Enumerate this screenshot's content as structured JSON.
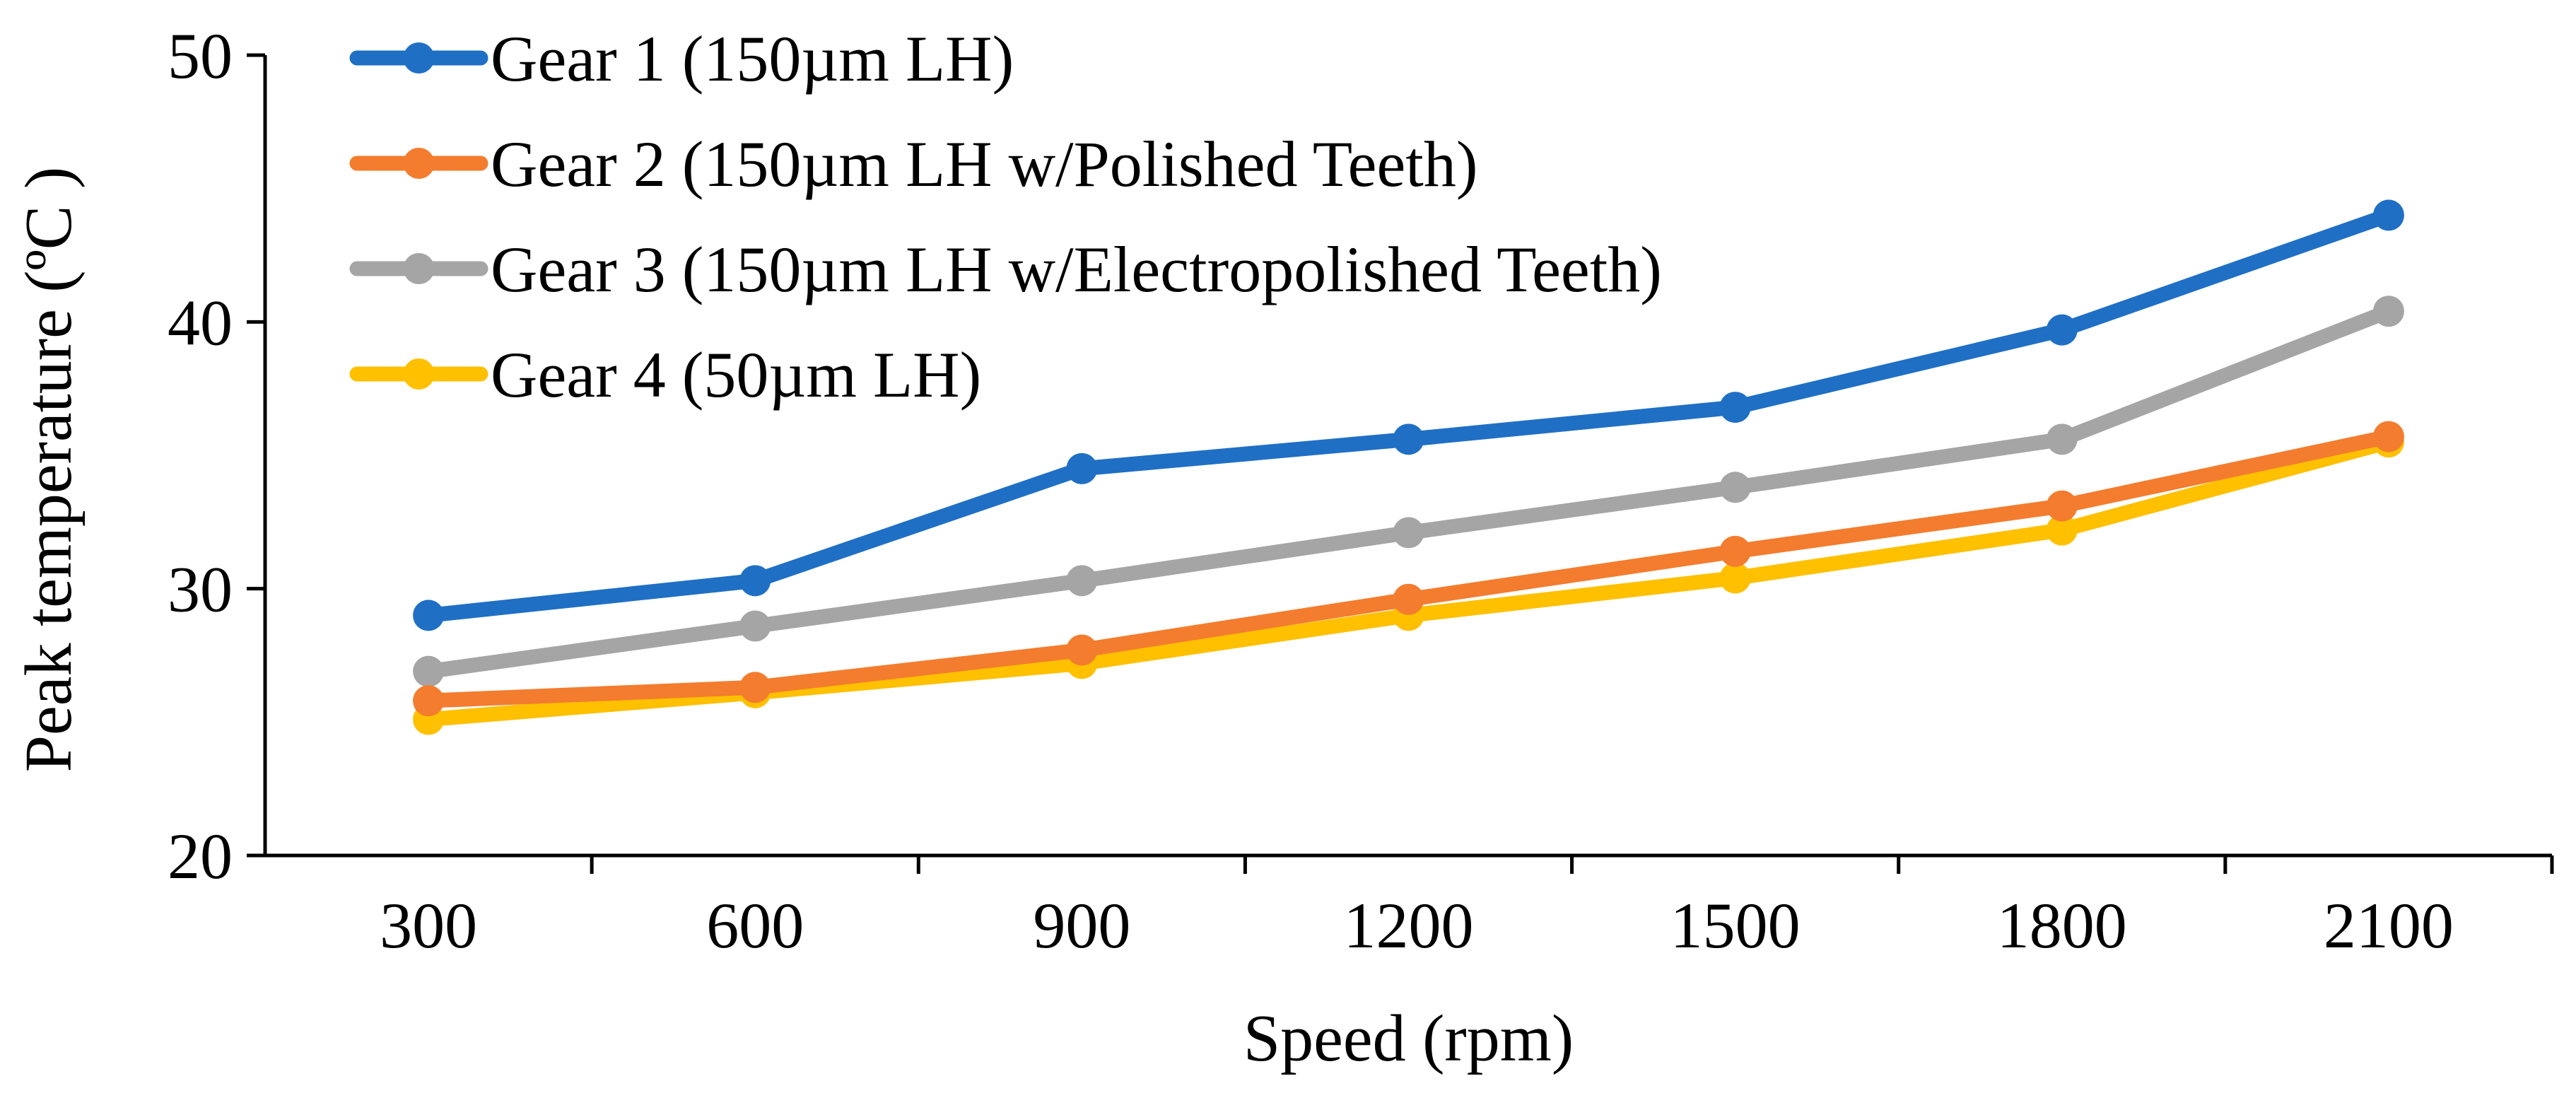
{
  "chart_data": {
    "type": "line",
    "title": "",
    "xlabel": "Speed (rpm)",
    "ylabel": "Peak temperature (ºC )",
    "x": [
      300,
      600,
      900,
      1200,
      1500,
      1800,
      2100
    ],
    "x_tick_labels": [
      "300",
      "600",
      "900",
      "1200",
      "1500",
      "1800",
      "2100"
    ],
    "ylim": [
      20,
      50
    ],
    "y_ticks": [
      20,
      30,
      40,
      50
    ],
    "y_tick_labels": [
      "20",
      "30",
      "40",
      "50"
    ],
    "grid": false,
    "legend_position": "top-left",
    "series": [
      {
        "name": "Gear 1 (150µm LH)",
        "color": "#1F6FC5",
        "values": [
          29.0,
          30.3,
          34.5,
          35.6,
          36.8,
          39.7,
          44.0
        ]
      },
      {
        "name": "Gear 2 (150µm LH w/Polished Teeth)",
        "color": "#F47C2E",
        "values": [
          25.8,
          26.3,
          27.7,
          29.6,
          31.4,
          33.1,
          35.7
        ]
      },
      {
        "name": "Gear 3 (150µm LH w/Electropolished Teeth)",
        "color": "#A5A5A5",
        "values": [
          26.9,
          28.6,
          30.3,
          32.1,
          33.8,
          35.6,
          40.4
        ]
      },
      {
        "name": "Gear 4 (50µm LH)",
        "color": "#FFC000",
        "values": [
          25.1,
          26.1,
          27.2,
          29.0,
          30.4,
          32.2,
          35.5
        ]
      }
    ],
    "draw_order": [
      2,
      3,
      1,
      0
    ]
  }
}
